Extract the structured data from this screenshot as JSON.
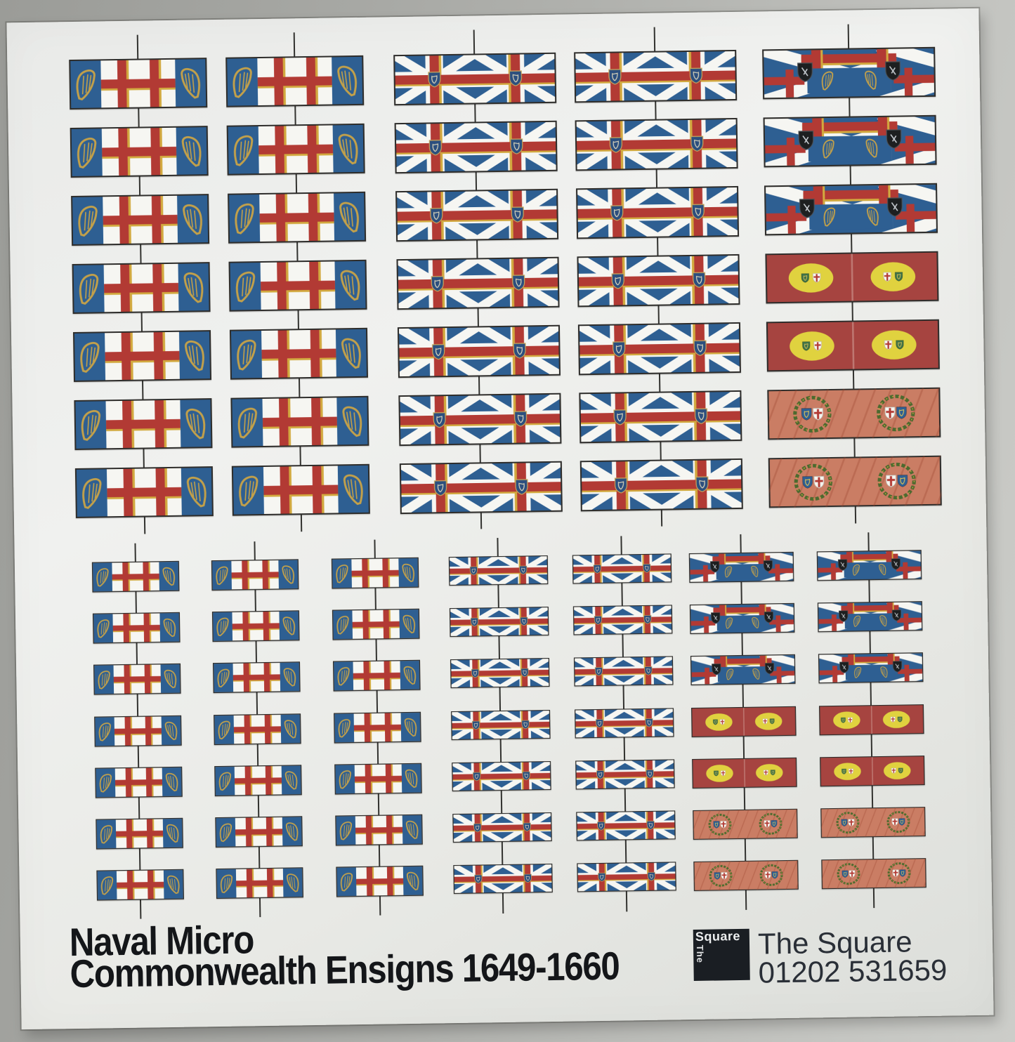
{
  "photo": {
    "background_gray": "#aaaba7"
  },
  "sheet": {
    "paper_white": "#ebecea"
  },
  "colors": {
    "flag_blue": "#2e5f92",
    "cross_red": "#b23a34",
    "fimbriation_gold": "#d2a93f",
    "harp_gold": "#c2a04a",
    "outline_dark": "#2e2d2b",
    "white_cloth": "#f6f6f2",
    "dark_red": "#a64440",
    "oval_yellow": "#e0d23f",
    "salmon": "#ca7d64",
    "wreath_green": "#4c6a2f",
    "shield_black": "#1d1f20",
    "union_shield_blue": "#2c4f7e"
  },
  "flag_types": {
    "commonwealth-ensign": {
      "label": "Commonwealth ensign - St George cross with Irish harp panels"
    },
    "union-harp-jack-pair": {
      "label": "Union flag pair with Irish harp escutcheon"
    },
    "general-at-sea-standard": {
      "label": "General-at-Sea standard - quartered crosses with harp band and black escutcheons"
    },
    "command-flag-yellow-ovals": {
      "label": "Red command flag with yellow ovals bearing harp and cross shields"
    },
    "command-flag-laurel-wreaths": {
      "label": "Red command flag with laurel wreaths bearing harp and cross shields"
    }
  },
  "flag_grid": {
    "sections": [
      {
        "id": "large-strips",
        "columns": [
          {
            "types": [
              "commonwealth-ensign",
              "commonwealth-ensign",
              "commonwealth-ensign",
              "commonwealth-ensign",
              "commonwealth-ensign",
              "commonwealth-ensign",
              "commonwealth-ensign"
            ]
          },
          {
            "types": [
              "commonwealth-ensign",
              "commonwealth-ensign",
              "commonwealth-ensign",
              "commonwealth-ensign",
              "commonwealth-ensign",
              "commonwealth-ensign",
              "commonwealth-ensign"
            ]
          },
          {
            "types": [
              "union-harp-jack-pair",
              "union-harp-jack-pair",
              "union-harp-jack-pair",
              "union-harp-jack-pair",
              "union-harp-jack-pair",
              "union-harp-jack-pair",
              "union-harp-jack-pair"
            ]
          },
          {
            "types": [
              "union-harp-jack-pair",
              "union-harp-jack-pair",
              "union-harp-jack-pair",
              "union-harp-jack-pair",
              "union-harp-jack-pair",
              "union-harp-jack-pair",
              "union-harp-jack-pair"
            ]
          },
          {
            "types": [
              "general-at-sea-standard",
              "general-at-sea-standard",
              "general-at-sea-standard",
              "command-flag-yellow-ovals",
              "command-flag-yellow-ovals",
              "command-flag-laurel-wreaths",
              "command-flag-laurel-wreaths"
            ]
          }
        ]
      },
      {
        "id": "small-strips",
        "columns": [
          {
            "types": [
              "commonwealth-ensign",
              "commonwealth-ensign",
              "commonwealth-ensign",
              "commonwealth-ensign",
              "commonwealth-ensign",
              "commonwealth-ensign",
              "commonwealth-ensign"
            ]
          },
          {
            "types": [
              "commonwealth-ensign",
              "commonwealth-ensign",
              "commonwealth-ensign",
              "commonwealth-ensign",
              "commonwealth-ensign",
              "commonwealth-ensign",
              "commonwealth-ensign"
            ]
          },
          {
            "types": [
              "commonwealth-ensign",
              "commonwealth-ensign",
              "commonwealth-ensign",
              "commonwealth-ensign",
              "commonwealth-ensign",
              "commonwealth-ensign",
              "commonwealth-ensign"
            ]
          },
          {
            "types": [
              "union-harp-jack-pair",
              "union-harp-jack-pair",
              "union-harp-jack-pair",
              "union-harp-jack-pair",
              "union-harp-jack-pair",
              "union-harp-jack-pair",
              "union-harp-jack-pair"
            ]
          },
          {
            "types": [
              "union-harp-jack-pair",
              "union-harp-jack-pair",
              "union-harp-jack-pair",
              "union-harp-jack-pair",
              "union-harp-jack-pair",
              "union-harp-jack-pair",
              "union-harp-jack-pair"
            ]
          },
          {
            "types": [
              "general-at-sea-standard",
              "general-at-sea-standard",
              "general-at-sea-standard",
              "command-flag-yellow-ovals",
              "command-flag-yellow-ovals",
              "command-flag-laurel-wreaths",
              "command-flag-laurel-wreaths"
            ]
          },
          {
            "types": [
              "general-at-sea-standard",
              "general-at-sea-standard",
              "general-at-sea-standard",
              "command-flag-yellow-ovals",
              "command-flag-yellow-ovals",
              "command-flag-laurel-wreaths",
              "command-flag-laurel-wreaths"
            ]
          }
        ]
      }
    ]
  },
  "footer": {
    "product_line1": "Naval Micro",
    "product_line2": "Commonwealth Ensigns 1649-1660",
    "logo_square_word": "Square",
    "logo_the_word": "The",
    "vendor_name": "The Square",
    "vendor_phone": "01202 531659"
  }
}
